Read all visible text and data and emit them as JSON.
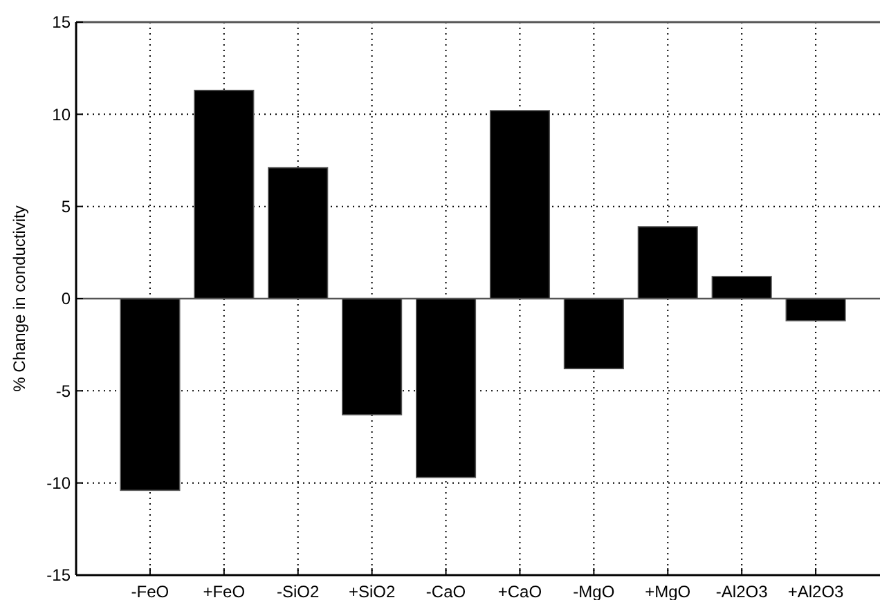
{
  "chart_data": {
    "type": "bar",
    "ylabel": "% Change in conductivity",
    "categories": [
      "-FeO",
      "+FeO",
      "-SiO2",
      "+SiO2",
      "-CaO",
      "+CaO",
      "-MgO",
      "+MgO",
      "-Al2O3",
      "+Al2O3"
    ],
    "values": [
      -10.4,
      11.3,
      7.1,
      -6.3,
      -9.7,
      10.2,
      -3.8,
      3.9,
      1.2,
      -1.2
    ],
    "color": "#000000",
    "ylim": [
      -15,
      15
    ],
    "yticks": [
      -15,
      -10,
      -5,
      0,
      5,
      10,
      15
    ],
    "grid": true
  }
}
